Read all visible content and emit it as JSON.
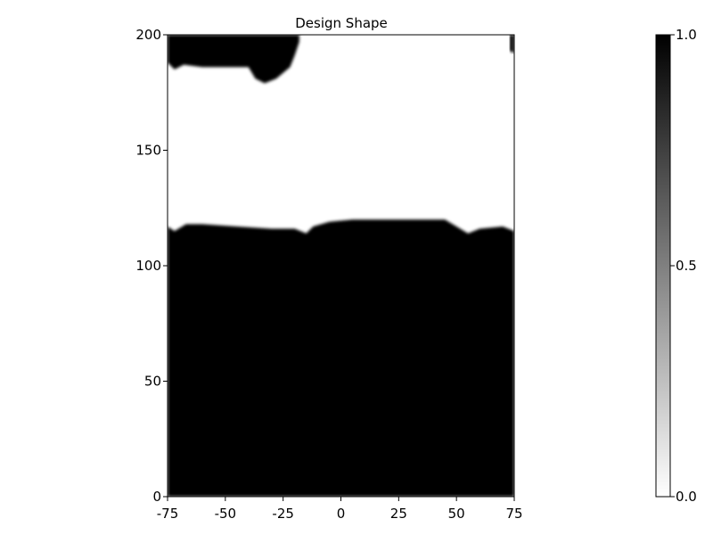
{
  "chart_data": {
    "type": "heatmap",
    "title": "Design Shape",
    "xlabel": "",
    "ylabel": "",
    "xlim": [
      -75,
      75
    ],
    "ylim": [
      0,
      200
    ],
    "x_ticks": [
      "-75",
      "-50",
      "-25",
      "0",
      "25",
      "50",
      "75"
    ],
    "y_ticks": [
      "0",
      "50",
      "100",
      "150",
      "200"
    ],
    "grid": false,
    "colormap": "greys",
    "colorbar": {
      "range": [
        0.0,
        1.0
      ],
      "ticks": [
        "0.0",
        "0.5",
        "1.0"
      ],
      "low_color": "#ffffff",
      "high_color": "#000000"
    },
    "description_values": {
      "region_below_boundary": 1.0,
      "region_above_boundary": 0.0
    },
    "lower_boundary_profile": [
      [
        -75,
        117
      ],
      [
        -72,
        115
      ],
      [
        -67,
        118
      ],
      [
        -60,
        118
      ],
      [
        -45,
        117
      ],
      [
        -30,
        116
      ],
      [
        -20,
        116
      ],
      [
        -15,
        114
      ],
      [
        -12,
        117
      ],
      [
        -5,
        119
      ],
      [
        5,
        120
      ],
      [
        15,
        120
      ],
      [
        25,
        120
      ],
      [
        35,
        120
      ],
      [
        45,
        120
      ],
      [
        50,
        117
      ],
      [
        55,
        114
      ],
      [
        60,
        116
      ],
      [
        70,
        117
      ],
      [
        75,
        115
      ]
    ],
    "top_blob_profile": [
      [
        -75,
        200
      ],
      [
        -75,
        188
      ],
      [
        -72,
        185
      ],
      [
        -68,
        187
      ],
      [
        -60,
        186
      ],
      [
        -50,
        186
      ],
      [
        -40,
        186
      ],
      [
        -37,
        181
      ],
      [
        -33,
        179
      ],
      [
        -28,
        181
      ],
      [
        -22,
        186
      ],
      [
        -20,
        191
      ],
      [
        -18,
        197
      ],
      [
        -18,
        200
      ]
    ],
    "top_right_sliver": [
      [
        73,
        200
      ],
      [
        73,
        193
      ],
      [
        75,
        192
      ],
      [
        75,
        200
      ]
    ]
  }
}
